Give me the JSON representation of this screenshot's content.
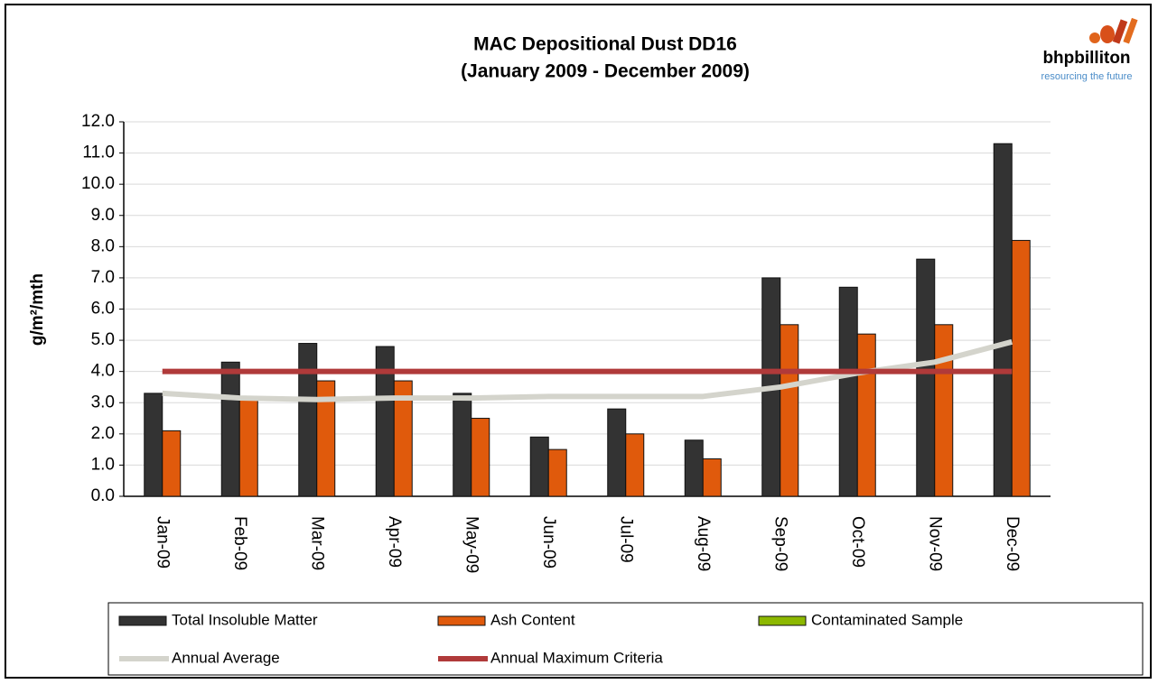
{
  "chart_data": {
    "type": "bar",
    "title": "MAC Depositional Dust DD16",
    "subtitle": "(January 2009 - December 2009)",
    "y_label": "g/m²/mth",
    "categories": [
      "Jan-09",
      "Feb-09",
      "Mar-09",
      "Apr-09",
      "May-09",
      "Jun-09",
      "Jul-09",
      "Aug-09",
      "Sep-09",
      "Oct-09",
      "Nov-09",
      "Dec-09"
    ],
    "series": [
      {
        "name": "Total Insoluble Matter",
        "type": "bar",
        "color": "#333333",
        "values": [
          3.3,
          4.3,
          4.9,
          4.8,
          3.3,
          1.9,
          2.8,
          1.8,
          7.0,
          6.7,
          7.6,
          11.3
        ]
      },
      {
        "name": "Ash Content",
        "type": "bar",
        "color": "#e05a0c",
        "values": [
          2.1,
          3.2,
          3.7,
          3.7,
          2.5,
          1.5,
          2.0,
          1.2,
          5.5,
          5.2,
          5.5,
          8.2
        ]
      },
      {
        "name": "Contaminated Sample",
        "type": "bar",
        "color": "#8cb800",
        "values": [
          null,
          null,
          null,
          null,
          null,
          null,
          null,
          null,
          null,
          null,
          null,
          null
        ]
      },
      {
        "name": "Annual Average",
        "type": "line",
        "color": "#d4d4cc",
        "values": [
          3.3,
          3.15,
          3.1,
          3.15,
          3.15,
          3.2,
          3.2,
          3.2,
          3.5,
          3.95,
          4.3,
          4.95
        ]
      },
      {
        "name": "Annual Maximum Criteria",
        "type": "line",
        "color": "#b03a3a",
        "values": [
          4.0,
          4.0,
          4.0,
          4.0,
          4.0,
          4.0,
          4.0,
          4.0,
          4.0,
          4.0,
          4.0,
          4.0
        ]
      }
    ],
    "ylim": [
      0,
      12
    ],
    "yticks": [
      {
        "value": 0,
        "label": "0.0"
      },
      {
        "value": 1,
        "label": "1.0"
      },
      {
        "value": 2,
        "label": "2.0"
      },
      {
        "value": 3,
        "label": "3.0"
      },
      {
        "value": 4,
        "label": "4.0"
      },
      {
        "value": 5,
        "label": "5.0"
      },
      {
        "value": 6,
        "label": "6.0"
      },
      {
        "value": 7,
        "label": "7.0"
      },
      {
        "value": 8,
        "label": "8.0"
      },
      {
        "value": 9,
        "label": "9.0"
      },
      {
        "value": 10,
        "label": "10.0"
      },
      {
        "value": 11,
        "label": "11.0"
      },
      {
        "value": 12,
        "label": "12.0"
      }
    ],
    "grid": true
  },
  "logo": {
    "name": "bhpbilliton",
    "tagline": "resourcing the future"
  }
}
